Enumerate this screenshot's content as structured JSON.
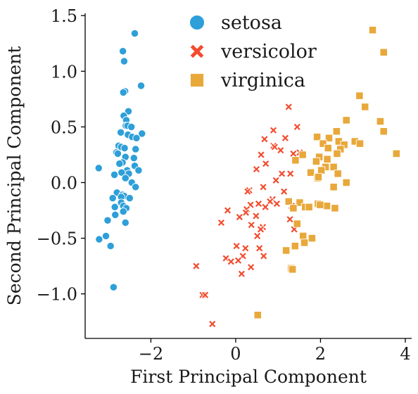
{
  "chart_data": {
    "type": "scatter",
    "title": "",
    "xlabel": "First Principal Component",
    "ylabel": "Second Principal Component",
    "xlim": [
      -3.55,
      4.15
    ],
    "ylim": [
      -1.4,
      1.52
    ],
    "xticks": [
      -2,
      0,
      2,
      4
    ],
    "yticks": [
      -1.0,
      -0.5,
      0.0,
      0.5,
      1.0,
      1.5
    ],
    "xtick_labels": [
      "−2",
      "0",
      "2",
      "4"
    ],
    "ytick_labels": [
      "−1.0",
      "−0.5",
      "0.0",
      "0.5",
      "1.0",
      "1.5"
    ],
    "grid": false,
    "legend_position": "top-center",
    "series": [
      {
        "name": "setosa",
        "color": "#2e9fd8",
        "marker": "circle",
        "points": [
          [
            -2.38,
            1.34
          ],
          [
            -2.66,
            1.18
          ],
          [
            -2.63,
            1.09
          ],
          [
            -2.23,
            0.87
          ],
          [
            -2.61,
            0.82
          ],
          [
            -2.65,
            0.81
          ],
          [
            -2.53,
            0.64
          ],
          [
            -2.64,
            0.6
          ],
          [
            -2.58,
            0.56
          ],
          [
            -2.59,
            0.51
          ],
          [
            -2.55,
            0.51
          ],
          [
            -2.46,
            0.5
          ],
          [
            -2.71,
            0.45
          ],
          [
            -2.54,
            0.43
          ],
          [
            -2.21,
            0.44
          ],
          [
            -2.44,
            0.41
          ],
          [
            -2.34,
            0.4
          ],
          [
            -2.76,
            0.33
          ],
          [
            -2.7,
            0.32
          ],
          [
            -2.62,
            0.31
          ],
          [
            -2.36,
            0.3
          ],
          [
            -2.81,
            0.27
          ],
          [
            -2.78,
            0.26
          ],
          [
            -2.6,
            0.23
          ],
          [
            -2.4,
            0.22
          ],
          [
            -2.67,
            0.18
          ],
          [
            -2.74,
            0.17
          ],
          [
            -2.38,
            0.15
          ],
          [
            -3.23,
            0.13
          ],
          [
            -2.56,
            0.11
          ],
          [
            -2.29,
            0.11
          ],
          [
            -2.69,
            0.09
          ],
          [
            -2.52,
            0.08
          ],
          [
            -2.86,
            0.07
          ],
          [
            -2.6,
            0.04
          ],
          [
            -2.45,
            0.0
          ],
          [
            -2.36,
            -0.04
          ],
          [
            -2.8,
            -0.09
          ],
          [
            -2.67,
            -0.11
          ],
          [
            -2.63,
            -0.12
          ],
          [
            -2.7,
            -0.13
          ],
          [
            -2.9,
            -0.14
          ],
          [
            -2.5,
            -0.14
          ],
          [
            -2.7,
            -0.18
          ],
          [
            -2.65,
            -0.21
          ],
          [
            -2.85,
            -0.22
          ],
          [
            -2.58,
            -0.23
          ],
          [
            -2.65,
            -0.26
          ],
          [
            -2.84,
            -0.29
          ],
          [
            -3.02,
            -0.34
          ],
          [
            -2.6,
            -0.36
          ],
          [
            -3.06,
            -0.48
          ],
          [
            -3.22,
            -0.51
          ],
          [
            -2.95,
            -0.57
          ],
          [
            -2.88,
            -0.94
          ]
        ]
      },
      {
        "name": "versicolor",
        "color": "#f24c2e",
        "marker": "x",
        "points": [
          [
            1.25,
            0.68
          ],
          [
            1.45,
            0.5
          ],
          [
            0.89,
            0.47
          ],
          [
            1.17,
            0.4
          ],
          [
            0.68,
            0.39
          ],
          [
            0.89,
            0.33
          ],
          [
            0.92,
            0.32
          ],
          [
            1.06,
            0.29
          ],
          [
            1.36,
            0.26
          ],
          [
            1.51,
            0.27
          ],
          [
            0.6,
            0.25
          ],
          [
            0.71,
            0.17
          ],
          [
            0.49,
            0.12
          ],
          [
            1.09,
            0.08
          ],
          [
            1.29,
            0.08
          ],
          [
            0.95,
            0.02
          ],
          [
            0.65,
            -0.04
          ],
          [
            0.32,
            -0.07
          ],
          [
            0.28,
            -0.08
          ],
          [
            1.14,
            -0.08
          ],
          [
            0.87,
            -0.15
          ],
          [
            0.81,
            -0.17
          ],
          [
            0.54,
            -0.19
          ],
          [
            0.35,
            -0.2
          ],
          [
            0.97,
            -0.19
          ],
          [
            1.32,
            -0.21
          ],
          [
            0.7,
            -0.22
          ],
          [
            0.26,
            -0.24
          ],
          [
            -0.19,
            -0.25
          ],
          [
            0.24,
            -0.27
          ],
          [
            0.09,
            -0.31
          ],
          [
            0.48,
            -0.3
          ],
          [
            -0.34,
            -0.36
          ],
          [
            0.37,
            -0.38
          ],
          [
            0.64,
            -0.4
          ],
          [
            0.59,
            -0.42
          ],
          [
            1.28,
            -0.33
          ],
          [
            1.38,
            -0.42
          ],
          [
            0.51,
            -0.48
          ],
          [
            0.56,
            -0.59
          ],
          [
            0.23,
            -0.59
          ],
          [
            0.02,
            -0.57
          ],
          [
            0.66,
            -0.66
          ],
          [
            0.17,
            -0.66
          ],
          [
            0.06,
            -0.7
          ],
          [
            -0.23,
            -0.68
          ],
          [
            -0.11,
            -0.71
          ],
          [
            -0.93,
            -0.75
          ],
          [
            0.36,
            -0.76
          ],
          [
            0.14,
            -0.82
          ],
          [
            -0.78,
            -1.01
          ],
          [
            -0.72,
            -1.01
          ],
          [
            -0.55,
            -1.27
          ]
        ]
      },
      {
        "name": "virginica",
        "color": "#e8a83a",
        "marker": "square",
        "points": [
          [
            3.23,
            1.37
          ],
          [
            3.49,
            1.17
          ],
          [
            2.92,
            0.78
          ],
          [
            3.05,
            0.68
          ],
          [
            2.61,
            0.56
          ],
          [
            3.41,
            0.55
          ],
          [
            3.49,
            0.46
          ],
          [
            2.38,
            0.46
          ],
          [
            1.92,
            0.41
          ],
          [
            2.2,
            0.4
          ],
          [
            2.81,
            0.37
          ],
          [
            2.43,
            0.37
          ],
          [
            2.93,
            0.35
          ],
          [
            2.06,
            0.35
          ],
          [
            2.56,
            0.34
          ],
          [
            2.18,
            0.31
          ],
          [
            2.47,
            0.3
          ],
          [
            1.58,
            0.25
          ],
          [
            2.39,
            0.26
          ],
          [
            1.97,
            0.23
          ],
          [
            3.79,
            0.26
          ],
          [
            2.16,
            0.21
          ],
          [
            1.41,
            0.2
          ],
          [
            1.9,
            0.19
          ],
          [
            2.12,
            0.14
          ],
          [
            2.31,
            0.14
          ],
          [
            2.02,
            0.11
          ],
          [
            1.77,
            0.09
          ],
          [
            2.41,
            0.08
          ],
          [
            1.93,
            0.04
          ],
          [
            1.95,
            0.05
          ],
          [
            2.61,
            0.0
          ],
          [
            2.31,
            -0.04
          ],
          [
            1.25,
            -0.17
          ],
          [
            1.51,
            -0.18
          ],
          [
            1.64,
            -0.22
          ],
          [
            2.15,
            -0.21
          ],
          [
            1.73,
            -0.22
          ],
          [
            1.94,
            -0.19
          ],
          [
            1.99,
            -0.2
          ],
          [
            2.34,
            -0.23
          ],
          [
            1.36,
            -0.23
          ],
          [
            1.45,
            -0.37
          ],
          [
            1.59,
            -0.48
          ],
          [
            1.8,
            -0.5
          ],
          [
            1.4,
            -0.57
          ],
          [
            1.19,
            -0.61
          ],
          [
            1.62,
            -0.54
          ],
          [
            1.31,
            -0.77
          ],
          [
            1.34,
            -0.78
          ],
          [
            0.52,
            -1.19
          ]
        ]
      }
    ]
  }
}
